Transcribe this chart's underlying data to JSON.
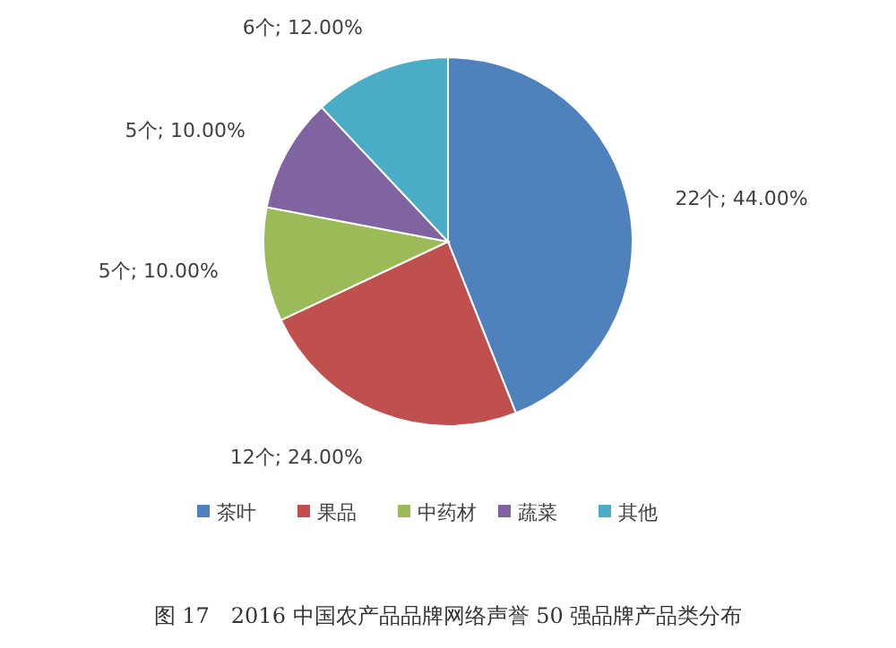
{
  "chart_data": {
    "type": "pie",
    "categories": [
      "茶叶",
      "果品",
      "中药材",
      "蔬菜",
      "其他"
    ],
    "values": [
      22,
      12,
      5,
      5,
      6
    ],
    "colors": [
      "#4f81bd",
      "#c0504d",
      "#9bbb59",
      "#8064a2",
      "#4bacc6"
    ],
    "value_labels": [
      "22个; 44.00%",
      "12个; 24.00%",
      "5个; 10.00%",
      "5个; 10.00%",
      "6个; 12.00%"
    ],
    "legend": "bottom",
    "annotations": [
      "图 17　2016 中国农产品品牌网络声誉 50 强品牌产品类分布"
    ]
  }
}
